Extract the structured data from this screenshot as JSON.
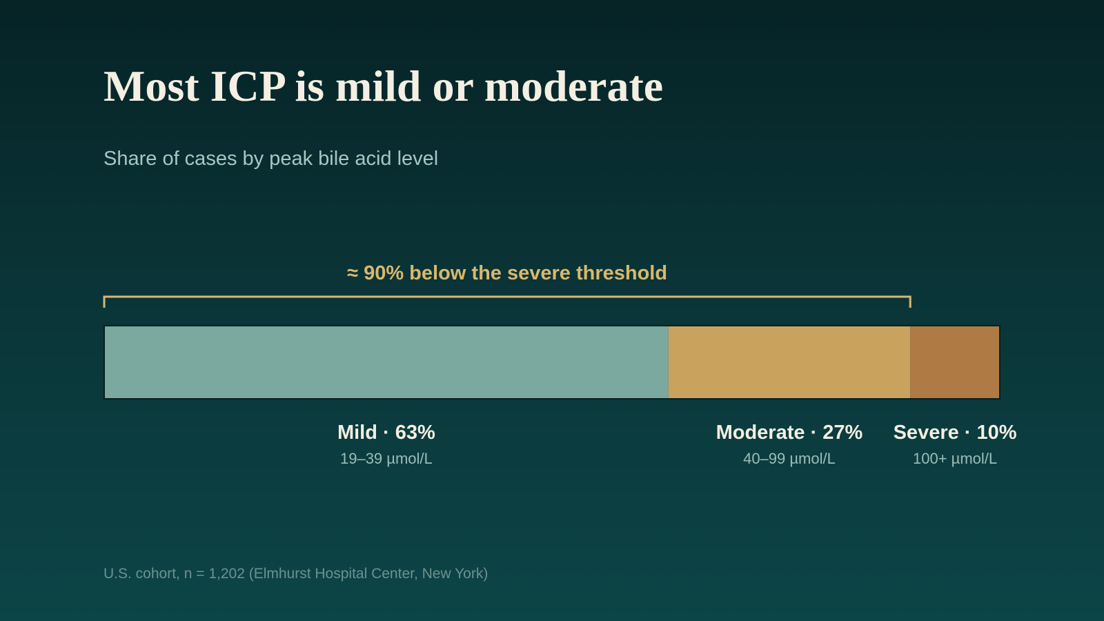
{
  "title": "Most ICP is mild or moderate",
  "subtitle": "Share of cases by peak bile acid level",
  "source": "U.S. cohort, n = 1,202 (Elmhurst Hospital Center, New York)",
  "chart_data": {
    "type": "bar",
    "orientation": "horizontal-stacked",
    "unit": "%",
    "categories": [
      "Mild",
      "Moderate",
      "Severe"
    ],
    "values": [
      63,
      27,
      10
    ],
    "ranges": [
      "19–39 µmol/L",
      "40–99 µmol/L",
      "100+ µmol/L"
    ],
    "colors": [
      "#7ba89f",
      "#c9a35d",
      "#b07a45"
    ],
    "label_color": "#f4efe2",
    "range_color": "#9dbdb8",
    "annotation": {
      "text": "≈ 90% below the severe threshold",
      "spans": [
        "Mild",
        "Moderate"
      ],
      "color": "#d9b86e"
    }
  }
}
